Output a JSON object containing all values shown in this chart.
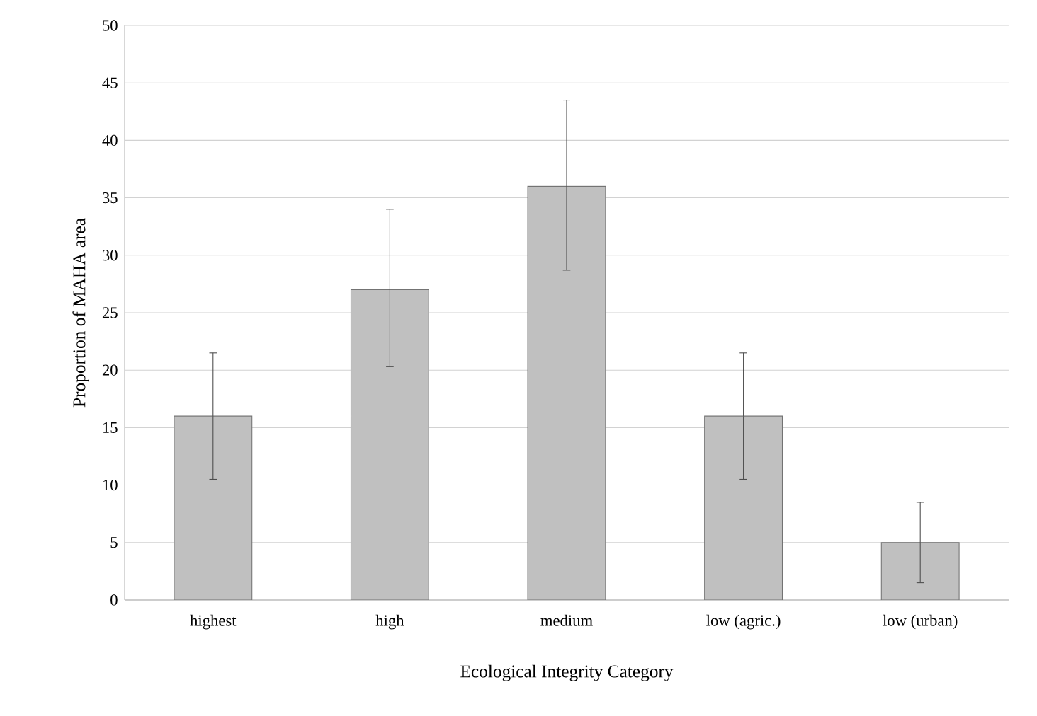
{
  "chart_data": {
    "type": "bar",
    "xlabel": "Ecological Integrity Category",
    "ylabel": "Proportion of MAHA area",
    "categories": [
      "highest",
      "high",
      "medium",
      "low (agric.)",
      "low (urban)"
    ],
    "values": [
      16,
      27,
      36,
      16,
      5
    ],
    "errors": [
      [
        10.5,
        21.5
      ],
      [
        20.3,
        34
      ],
      [
        28.7,
        43.5
      ],
      [
        10.5,
        21.5
      ],
      [
        1.5,
        8.5
      ]
    ],
    "color": "#c0c0c0",
    "ylim": [
      0,
      50
    ],
    "yticks": [
      0,
      5,
      10,
      15,
      20,
      25,
      30,
      35,
      40,
      45,
      50
    ],
    "grid": "y"
  }
}
